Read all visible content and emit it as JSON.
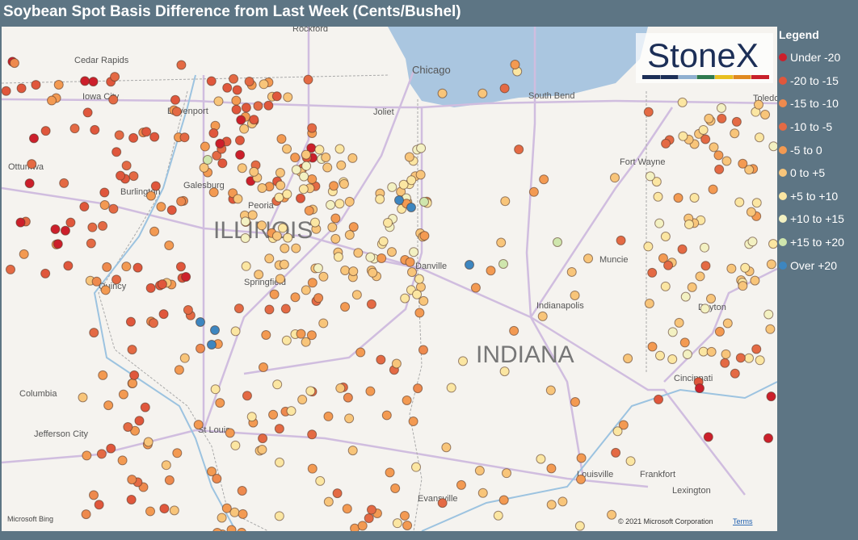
{
  "title": "Soybean Spot Basis Difference from Last Week (Cents/Bushel)",
  "legend": {
    "title": "Legend",
    "items": [
      {
        "label": "Under -20",
        "color": "#cc1f2b"
      },
      {
        "label": "-20 to -15",
        "color": "#e0573c"
      },
      {
        "label": "-15 to -10",
        "color": "#ee8a4e"
      },
      {
        "label": "-10 to -5",
        "color": "#e46a44"
      },
      {
        "label": "-5 to 0",
        "color": "#f39a52"
      },
      {
        "label": "0 to +5",
        "color": "#f8c57a"
      },
      {
        "label": "+5 to +10",
        "color": "#fbe6a2"
      },
      {
        "label": "+10 to +15",
        "color": "#f3f1c2"
      },
      {
        "label": "+15 to +20",
        "color": "#cfe6ad"
      },
      {
        "label": "Over +20",
        "color": "#3d86c0"
      }
    ]
  },
  "logo": "StoneX",
  "map_labels": [
    "Rockford",
    "Cedar Rapids",
    "Iowa City",
    "Davenport",
    "Ottumwa",
    "Burlington",
    "Galesburg",
    "Peoria",
    "Quincy",
    "Springfield",
    "Columbia",
    "Jefferson City",
    "St Louis",
    "Evansville",
    "Chicago",
    "Joliet",
    "South Bend",
    "Toledo",
    "Fort Wayne",
    "Muncie",
    "Indianapolis",
    "Dayton",
    "Cincinnati",
    "Louisville",
    "Frankfort",
    "Lexington",
    "Danville"
  ],
  "state_labels": [
    "ILLINOIS",
    "INDIANA"
  ],
  "attribution": {
    "brand": "Microsoft Bing",
    "copyright": "© 2021 Microsoft Corporation",
    "terms": "Terms"
  }
}
